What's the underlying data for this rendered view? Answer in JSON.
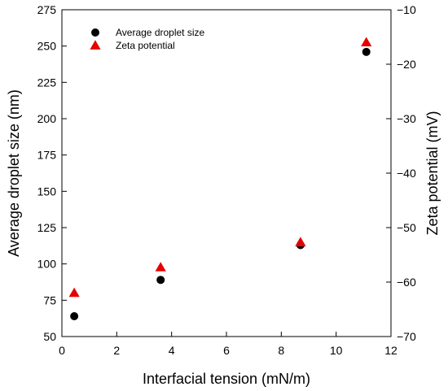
{
  "chart_data": {
    "type": "scatter",
    "xlabel": "Interfacial tension (mN/m)",
    "ylabel": "Average droplet size (nm)",
    "y2label": "Zeta potential (mV)",
    "xlim": [
      0,
      12
    ],
    "ylim": [
      50,
      275
    ],
    "y2lim": [
      -70,
      -10
    ],
    "x_ticks": [
      0,
      2,
      4,
      6,
      8,
      10,
      12
    ],
    "y_ticks": [
      50,
      75,
      100,
      125,
      150,
      175,
      200,
      225,
      250,
      275
    ],
    "y2_ticks": [
      -70,
      -60,
      -50,
      -40,
      -30,
      -20,
      -10
    ],
    "x_tick_labels": [
      "0",
      "2",
      "4",
      "6",
      "8",
      "10",
      "12"
    ],
    "y_tick_labels": [
      "50",
      "75",
      "100",
      "125",
      "150",
      "175",
      "200",
      "225",
      "250",
      "275"
    ],
    "y2_tick_labels": [
      "−70",
      "−60",
      "−50",
      "−40",
      "−30",
      "−20",
      "−10"
    ],
    "grid": false,
    "legend_position": "top-left",
    "series": [
      {
        "name": "Average droplet size",
        "axis": "left",
        "marker": "circle",
        "color": "#000000",
        "x": [
          0.45,
          3.6,
          8.7,
          11.1
        ],
        "values": [
          64,
          89,
          113,
          246
        ]
      },
      {
        "name": "Zeta potential",
        "axis": "right",
        "marker": "triangle",
        "color": "#e60000",
        "x": [
          0.45,
          3.6,
          8.7,
          11.1
        ],
        "values": [
          -62,
          -57.3,
          -52.7,
          -16
        ]
      }
    ]
  }
}
